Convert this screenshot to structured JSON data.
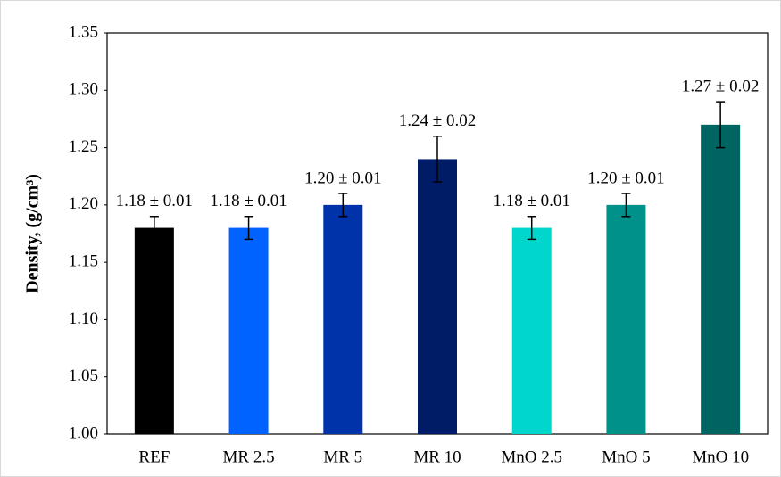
{
  "chart_data": {
    "type": "bar",
    "y_label": "Density, (g/cm³)",
    "categories": [
      "REF",
      "MR 2.5",
      "MR 5",
      "MR 10",
      "MnO 2.5",
      "MnO 5",
      "MnO 10"
    ],
    "values": [
      1.18,
      1.18,
      1.2,
      1.24,
      1.18,
      1.2,
      1.27
    ],
    "errors": [
      0.01,
      0.01,
      0.01,
      0.02,
      0.01,
      0.01,
      0.02
    ],
    "value_labels": [
      "1.18 ± 0.01",
      "1.18 ± 0.01",
      "1.20 ± 0.01",
      "1.24 ± 0.02",
      "1.18 ± 0.01",
      "1.20 ± 0.01",
      "1.27 ± 0.02"
    ],
    "colors": [
      "#000000",
      "#0062ff",
      "#0033aa",
      "#001c66",
      "#00d6cc",
      "#00918a",
      "#006462"
    ],
    "ylim": [
      1.0,
      1.35
    ],
    "yticks": [
      {
        "value": 1.0,
        "label": "1.00"
      },
      1.05,
      {
        "value": 1.1,
        "label": "1.10"
      },
      1.15,
      {
        "value": 1.2,
        "label": "1.20"
      },
      1.25,
      {
        "value": 1.3,
        "label": "1.30"
      },
      1.35
    ],
    "grid": false
  }
}
